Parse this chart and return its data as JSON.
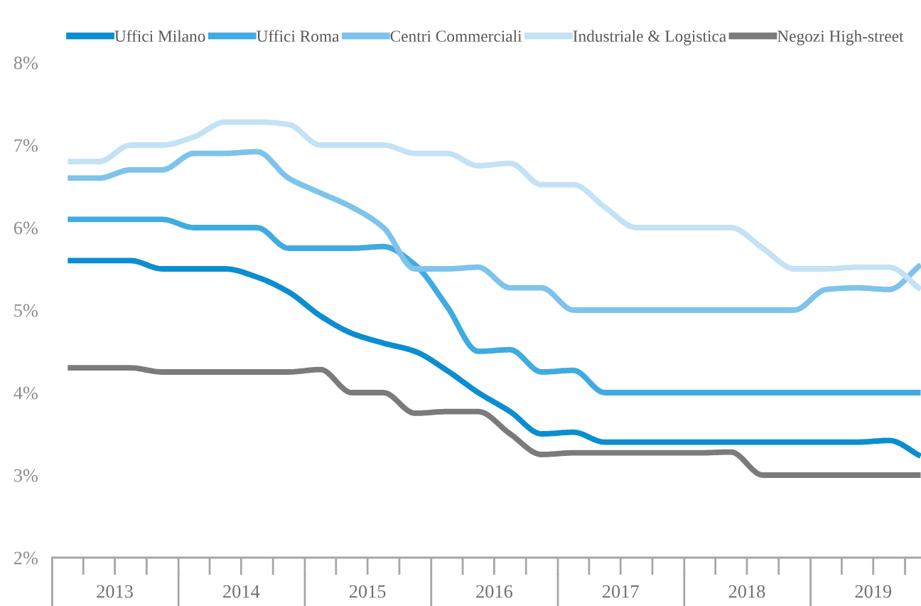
{
  "chart_data": {
    "type": "line",
    "x": [
      "2013-02-15",
      "2013-05-16",
      "2013-08-16",
      "2013-11-15",
      "2014-02-15",
      "2014-05-16",
      "2014-08-16",
      "2014-11-15",
      "2015-02-15",
      "2015-05-16",
      "2015-08-16",
      "2015-11-15",
      "2016-02-15",
      "2016-05-16",
      "2016-08-16",
      "2016-11-15",
      "2017-02-15",
      "2017-05-16",
      "2017-08-16",
      "2017-11-15",
      "2018-02-15",
      "2018-05-16",
      "2018-08-16",
      "2018-11-15",
      "2019-02-15",
      "2019-05-16",
      "2019-08-16",
      "2019-11-15"
    ],
    "series": [
      {
        "name": "Uffici Milano",
        "color": "#0b8ed0",
        "values": [
          5.6,
          5.6,
          5.6,
          5.5,
          5.5,
          5.5,
          5.4,
          5.22,
          4.93,
          4.72,
          4.6,
          4.5,
          4.27,
          4.0,
          3.77,
          3.5,
          3.52,
          3.4,
          3.4,
          3.4,
          3.4,
          3.4,
          3.4,
          3.4,
          3.4,
          3.4,
          3.42,
          3.23
        ]
      },
      {
        "name": "Uffici Roma",
        "color": "#3fabe0",
        "values": [
          6.1,
          6.1,
          6.1,
          6.1,
          6.0,
          6.0,
          6.0,
          5.75,
          5.75,
          5.75,
          5.77,
          5.55,
          5.05,
          4.5,
          4.52,
          4.25,
          4.27,
          4.0,
          4.0,
          4.0,
          4.0,
          4.0,
          4.0,
          4.0,
          4.0,
          4.0,
          4.0,
          4.0
        ]
      },
      {
        "name": "Centri Commerciali",
        "color": "#7ec3ea",
        "values": [
          6.6,
          6.6,
          6.7,
          6.7,
          6.9,
          6.9,
          6.92,
          6.6,
          6.42,
          6.25,
          6.0,
          5.5,
          5.5,
          5.52,
          5.27,
          5.27,
          5.0,
          5.0,
          5.0,
          5.0,
          5.0,
          5.0,
          5.0,
          5.0,
          5.25,
          5.27,
          5.25,
          5.55
        ]
      },
      {
        "name": "Industriale & Logistica",
        "color": "#c3e2f5",
        "values": [
          6.8,
          6.8,
          7.0,
          7.0,
          7.1,
          7.28,
          7.28,
          7.25,
          7.0,
          7.0,
          7.0,
          6.9,
          6.9,
          6.75,
          6.78,
          6.52,
          6.52,
          6.25,
          6.0,
          6.0,
          6.0,
          6.0,
          5.75,
          5.5,
          5.5,
          5.52,
          5.52,
          5.25
        ]
      },
      {
        "name": "Negozi High-street",
        "color": "#7b7b7b",
        "values": [
          4.3,
          4.3,
          4.3,
          4.25,
          4.25,
          4.25,
          4.25,
          4.25,
          4.28,
          4.0,
          4.0,
          3.75,
          3.77,
          3.77,
          3.5,
          3.25,
          3.27,
          3.27,
          3.27,
          3.27,
          3.27,
          3.28,
          3.0,
          3.0,
          3.0,
          3.0,
          3.0,
          3.0
        ]
      }
    ],
    "xlim": [
      "2013-01-01",
      "2019-11-16"
    ],
    "xticks": [
      {
        "value": "2013-01-01",
        "label": null
      },
      {
        "value": "2013-04-01",
        "label": null
      },
      {
        "value": "2013-07-01",
        "label": "2013"
      },
      {
        "value": "2013-10-01",
        "label": null
      },
      {
        "value": "2014-01-01",
        "label": null
      },
      {
        "value": "2014-04-01",
        "label": null
      },
      {
        "value": "2014-07-01",
        "label": "2014"
      },
      {
        "value": "2014-10-01",
        "label": null
      },
      {
        "value": "2015-01-01",
        "label": null
      },
      {
        "value": "2015-04-01",
        "label": null
      },
      {
        "value": "2015-07-01",
        "label": "2015"
      },
      {
        "value": "2015-10-01",
        "label": null
      },
      {
        "value": "2016-01-01",
        "label": null
      },
      {
        "value": "2016-04-01",
        "label": null
      },
      {
        "value": "2016-07-01",
        "label": "2016"
      },
      {
        "value": "2016-10-01",
        "label": null
      },
      {
        "value": "2017-01-01",
        "label": null
      },
      {
        "value": "2017-04-01",
        "label": null
      },
      {
        "value": "2017-07-01",
        "label": "2017"
      },
      {
        "value": "2017-10-01",
        "label": null
      },
      {
        "value": "2018-01-01",
        "label": null
      },
      {
        "value": "2018-04-01",
        "label": null
      },
      {
        "value": "2018-07-01",
        "label": "2018"
      },
      {
        "value": "2018-10-01",
        "label": null
      },
      {
        "value": "2019-01-01",
        "label": null
      },
      {
        "value": "2019-04-01",
        "label": null
      },
      {
        "value": "2019-07-01",
        "label": "2019"
      },
      {
        "value": "2019-10-01",
        "label": null
      }
    ],
    "ylim": [
      2,
      8
    ],
    "yticks": [
      {
        "value": 2,
        "label": "2%"
      },
      {
        "value": 3,
        "label": "3%"
      },
      {
        "value": 4,
        "label": "4%"
      },
      {
        "value": 5,
        "label": "5%"
      },
      {
        "value": 6,
        "label": "6%"
      },
      {
        "value": 7,
        "label": "7%"
      },
      {
        "value": 8,
        "label": "8%"
      }
    ],
    "legend": "top"
  }
}
